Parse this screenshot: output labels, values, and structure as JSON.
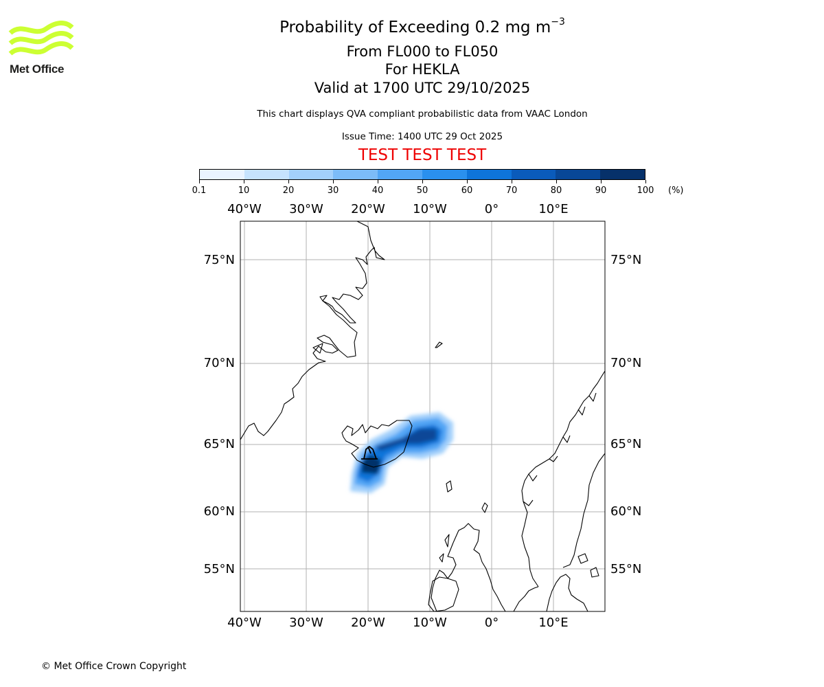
{
  "logo": {
    "text": "Met Office",
    "color": "#ccff33"
  },
  "header": {
    "title_main": "Probability of Exceeding 0.2 mg m",
    "title_sup": "−3",
    "levels": "From FL000 to FL050",
    "volcano": "For HEKLA",
    "valid": "Valid at 1700 UTC 29/10/2025",
    "description": "This chart displays QVA compliant probabilistic data from VAAC London",
    "issue_time": "Issue Time: 1400 UTC 29 Oct 2025",
    "test_banner": "TEST TEST TEST"
  },
  "colorbar": {
    "labels": [
      "0.1",
      "10",
      "20",
      "30",
      "40",
      "50",
      "60",
      "70",
      "80",
      "90",
      "100"
    ],
    "unit": "(%)",
    "colors": [
      "#eaf4ff",
      "#c6e3fd",
      "#a3d0fb",
      "#7cbcf8",
      "#52a6f5",
      "#2a90ee",
      "#0e74da",
      "#0a5bbb",
      "#084797",
      "#06316a"
    ]
  },
  "map": {
    "lon_labels": [
      "40°W",
      "30°W",
      "20°W",
      "10°W",
      "0°",
      "10°E"
    ],
    "lat_labels": [
      "75°N",
      "70°N",
      "65°N",
      "60°N",
      "55°N"
    ],
    "coast_color": "#000000",
    "grid_color": "#b0b0b0"
  },
  "footer": {
    "copyright": "© Met Office Crown Copyright"
  }
}
